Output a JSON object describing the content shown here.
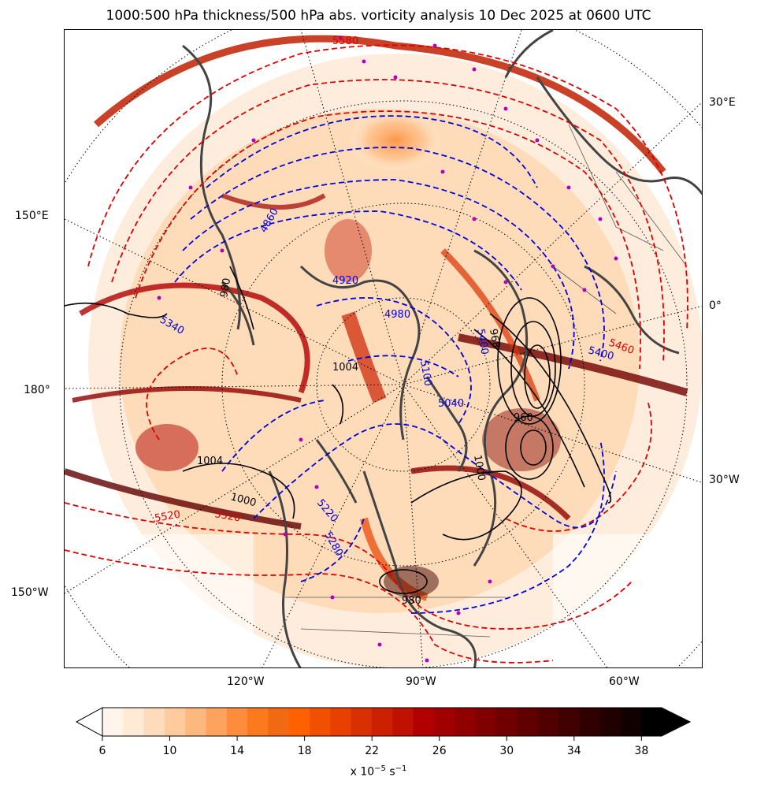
{
  "title": "1000:500 hPa thickness/500 hPa abs. vorticity analysis 10 Dec 2025 at 0600 UTC",
  "map": {
    "projection": "north-polar-stereographic",
    "longitude_labels": [
      {
        "text": "30°E",
        "side": "right"
      },
      {
        "text": "0°",
        "side": "right"
      },
      {
        "text": "30°W",
        "side": "right"
      },
      {
        "text": "150°E",
        "side": "left"
      },
      {
        "text": "180°",
        "side": "left"
      },
      {
        "text": "150°W",
        "side": "left"
      },
      {
        "text": "120°W",
        "side": "bottom"
      },
      {
        "text": "90°W",
        "side": "bottom"
      },
      {
        "text": "60°W",
        "side": "bottom"
      }
    ],
    "contour_labels": {
      "thickness_warm": [
        "5580",
        "5520",
        "5460",
        "5400",
        "5520",
        "5340"
      ],
      "thickness_cold": [
        "4860",
        "4920",
        "4980",
        "5100",
        "5040",
        "5220",
        "5280",
        "5400"
      ],
      "sea_level_pressure": [
        "1004",
        "1000",
        "1004",
        "980",
        "968",
        "960",
        "1000",
        "980"
      ]
    },
    "colors": {
      "warm_contour": "#e00000",
      "cold_contour": "#0000e0",
      "pressure_contour": "#000000",
      "coast": "#444444",
      "station_marker": "#b000c0"
    }
  },
  "colorbar": {
    "ticks": [
      "6",
      "10",
      "14",
      "18",
      "22",
      "26",
      "30",
      "34",
      "38"
    ],
    "units_prefix": "x 10",
    "units_exp": "−5",
    "units_suffix": " s",
    "units_exp2": "−1",
    "colors": [
      "#fff5eb",
      "#feead5",
      "#fedcbb",
      "#fdcb9c",
      "#fdb97d",
      "#fda35e",
      "#fd8d3c",
      "#fb7a1e",
      "#f16913",
      "#ff6000",
      "#f05000",
      "#e84000",
      "#d83000",
      "#cc2000",
      "#c01000",
      "#b00000",
      "#a00000",
      "#900000",
      "#800000",
      "#700000",
      "#600000",
      "#500000",
      "#400000",
      "#300000",
      "#200000",
      "#100000",
      "#000000"
    ]
  }
}
